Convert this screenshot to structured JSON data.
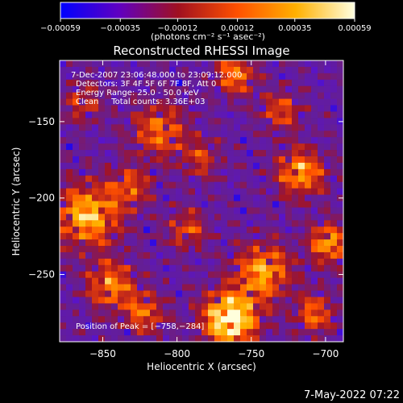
{
  "chart_data": {
    "type": "heatmap",
    "title": "Reconstructed RHESSI Image",
    "xlabel": "Heliocentric X (arcsec)",
    "ylabel": "Heliocentric Y (arcsec)",
    "xlim": [
      -879,
      -688
    ],
    "ylim": [
      -294,
      -110
    ],
    "xticks": [
      -850,
      -800,
      -750,
      -700
    ],
    "yticks": [
      -150,
      -200,
      -250
    ],
    "xtick_labels": [
      "−850",
      "−800",
      "−750",
      "−700"
    ],
    "ytick_labels": [
      "−150",
      "−200",
      "−250"
    ],
    "colorbar": {
      "min": -0.00059,
      "max": 0.00059,
      "ticks": [
        -0.00059,
        -0.00035,
        -0.00012,
        0.00012,
        0.00035,
        0.00059
      ],
      "tick_labels": [
        "−0.00059",
        "−0.00035",
        "−0.00012",
        "0.00012",
        "0.00035",
        "0.00059"
      ],
      "unit_label": "(photons cm⁻² s⁻¹ asec⁻²)",
      "colors": [
        "#0000ff",
        "#6000c0",
        "#a01020",
        "#ff5000",
        "#ffb000",
        "#ffffe0"
      ]
    },
    "annotations": [
      "7-Dec-2007 23:06:48.000 to 23:09:12.000",
      "Detectors: 3F 4F 5F 6F 7F 8F, Att 0",
      "Energy Range: 25.0 - 50.0 keV",
      "Clean     Total counts: 3.36E+03"
    ],
    "peak_label": "Position of Peak = [−758,−284]",
    "peak": [
      -758,
      -284
    ],
    "grid": false
  },
  "footer_date": "7-May-2022 07:22"
}
